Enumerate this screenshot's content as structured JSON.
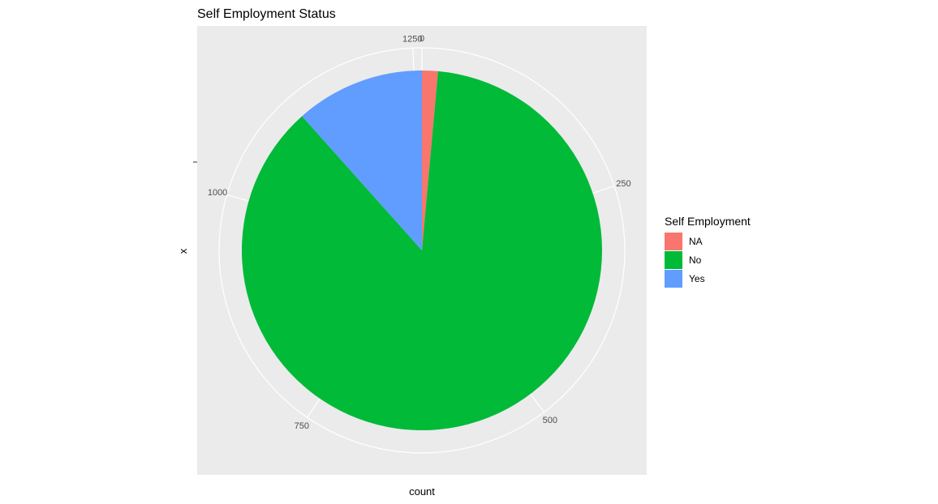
{
  "chart_data": {
    "type": "pie",
    "title": "Self Employment Status",
    "xlabel": "count",
    "ylabel": "x",
    "total": 1259,
    "categories": [
      "NA",
      "No",
      "Yes"
    ],
    "values": [
      18,
      1095,
      146
    ],
    "colors": [
      "#F8766D",
      "#00BA38",
      "#619CFF"
    ],
    "ticks": [
      {
        "value": 0,
        "label": "0"
      },
      {
        "value": 250,
        "label": "250"
      },
      {
        "value": 500,
        "label": "500"
      },
      {
        "value": 750,
        "label": "750"
      },
      {
        "value": 1000,
        "label": "1000"
      },
      {
        "value": 1250,
        "label": "1250"
      }
    ],
    "legend": {
      "title": "Self Employment",
      "position": "right",
      "entries": [
        "NA",
        "No",
        "Yes"
      ]
    },
    "panel_background": "#EBEBEB",
    "grid_color": "#FFFFFF"
  }
}
